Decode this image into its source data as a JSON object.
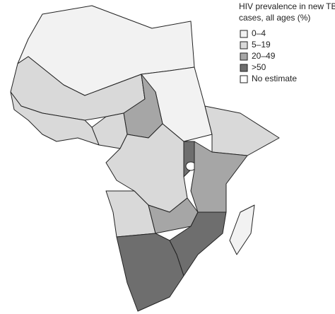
{
  "legend": {
    "title": [
      "HIV prevalence in new TB",
      "cases, all ages (%)"
    ],
    "items": [
      {
        "label": "0–4",
        "color": "#f2f2f2"
      },
      {
        "label": "5–19",
        "color": "#d9d9d9"
      },
      {
        "label": "20–49",
        "color": "#a6a6a6"
      },
      {
        "label": ">50",
        "color": "#6e6e6e"
      },
      {
        "label": "No estimate",
        "color": "#ffffff"
      }
    ]
  }
}
